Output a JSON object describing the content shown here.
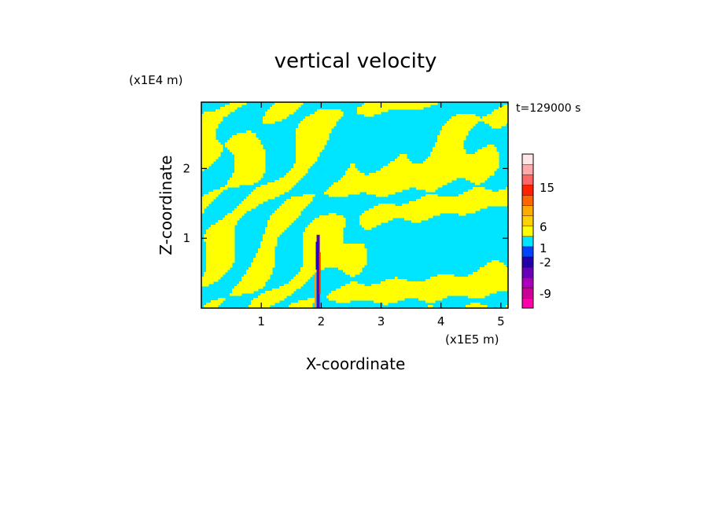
{
  "chart_data": {
    "type": "heatmap",
    "title": "vertical velocity",
    "xlabel": "X-coordinate",
    "ylabel": "Z-coordinate",
    "x_unit": "(x1E5 m)",
    "y_unit": "(x1E4 m)",
    "time_label": "t=129000 s",
    "xlim": [
      0,
      5.12
    ],
    "ylim": [
      0,
      2.95
    ],
    "x_ticks": [
      1,
      2,
      3,
      4,
      5
    ],
    "y_ticks": [
      1,
      2
    ],
    "x_tick_labels": [
      "1",
      "2",
      "3",
      "4",
      "5"
    ],
    "y_tick_labels": [
      "1",
      "2"
    ],
    "colorbar": {
      "colors": [
        "#ff00aa",
        "#cc0099",
        "#aa00bb",
        "#6600bb",
        "#2200aa",
        "#0044ff",
        "#00e5ff",
        "#ffff00",
        "#ffd000",
        "#ffaa00",
        "#ff6600",
        "#ff2200",
        "#ff6666",
        "#ffaaaa",
        "#ffe6e6"
      ],
      "tick_labels": [
        "15",
        "6",
        "1",
        "-2",
        "-9"
      ],
      "tick_values": [
        15,
        6,
        1,
        -2,
        -9
      ]
    },
    "field_colors": {
      "positive_weak": "#ffff00",
      "negative_weak": "#00e5ff",
      "positive_strong": "#ff4400",
      "negative_strong": "#5500bb"
    }
  }
}
